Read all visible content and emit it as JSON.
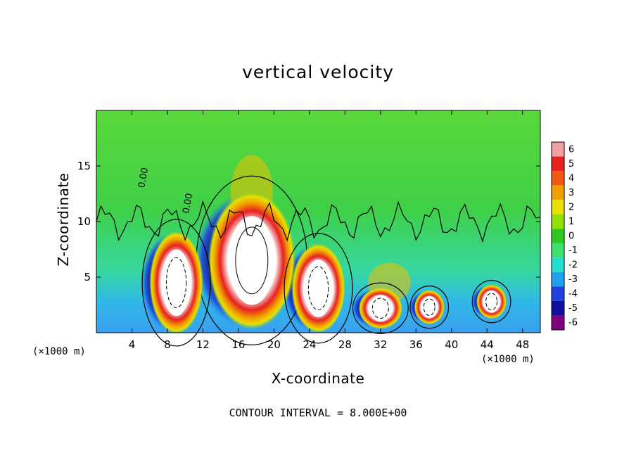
{
  "chart_data": {
    "type": "heatmap",
    "title": "vertical velocity",
    "xlabel": "X-coordinate",
    "ylabel": "Z-coordinate",
    "x_unit_label": "(×1000 m)",
    "y_unit_label": "(×1000 m)",
    "xlim": [
      0,
      50
    ],
    "ylim": [
      0,
      20
    ],
    "x_ticks": [
      4,
      8,
      12,
      16,
      20,
      24,
      28,
      32,
      36,
      40,
      44,
      48
    ],
    "y_ticks": [
      5,
      10,
      15
    ],
    "colorbar": {
      "levels": [
        6,
        5,
        4,
        3,
        2,
        1,
        0,
        -1,
        -2,
        -3,
        -4,
        -5,
        -6
      ],
      "colors": [
        "#f0a0a0",
        "#e82020",
        "#f05a10",
        "#f0a000",
        "#e8e000",
        "#90e000",
        "#30c820",
        "#40e070",
        "#20e0d0",
        "#20a0f0",
        "#2040e0",
        "#1010a0",
        "#800080"
      ]
    },
    "contour_labels": [
      "0.00",
      "0.00"
    ],
    "footer": "CONTOUR INTERVAL = 8.000E+00",
    "features": [
      {
        "kind": "updraft-core",
        "x": 17.5,
        "z": 6.5,
        "rx": 2.6,
        "rz": 4.0
      },
      {
        "kind": "updraft-core",
        "x": 9.0,
        "z": 4.5,
        "rx": 1.6,
        "rz": 3.0
      },
      {
        "kind": "updraft-core",
        "x": 25.0,
        "z": 4.0,
        "rx": 1.6,
        "rz": 2.6
      },
      {
        "kind": "updraft-core",
        "x": 32.0,
        "z": 2.2,
        "rx": 1.3,
        "rz": 1.2
      },
      {
        "kind": "updraft-core",
        "x": 37.5,
        "z": 2.3,
        "rx": 0.9,
        "rz": 1.0
      },
      {
        "kind": "updraft-core",
        "x": 44.5,
        "z": 2.8,
        "rx": 0.9,
        "rz": 1.0
      }
    ]
  }
}
